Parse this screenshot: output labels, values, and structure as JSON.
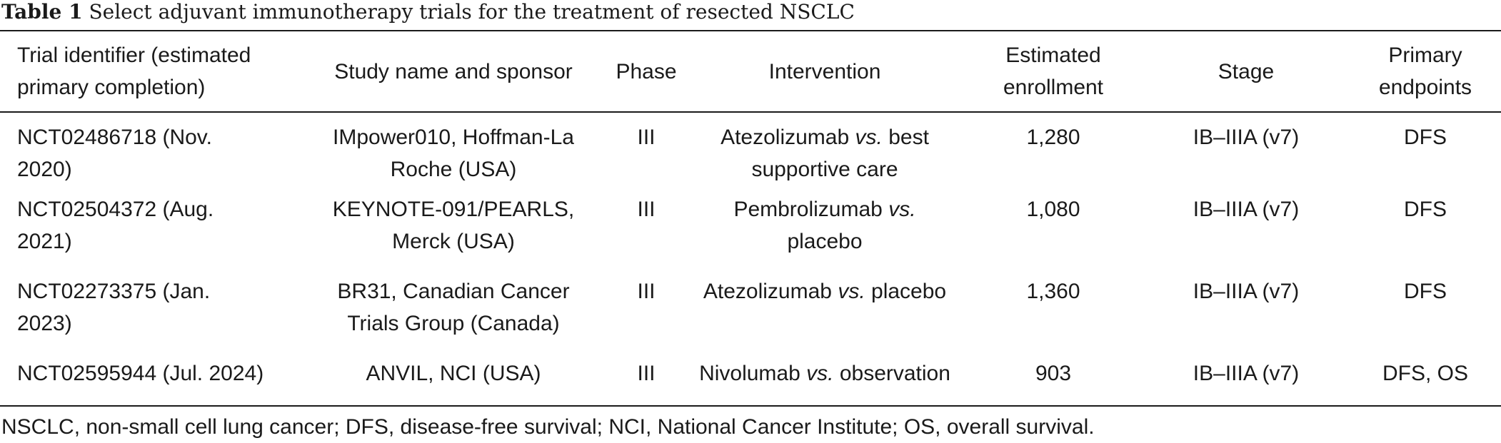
{
  "caption": {
    "label": "Table 1",
    "text": "Select adjuvant immunotherapy trials for the treatment of resected NSCLC"
  },
  "table": {
    "headers": {
      "trial_identifier_line1": "Trial identifier (estimated",
      "trial_identifier_line2": "primary completion)",
      "study": "Study name and sponsor",
      "phase": "Phase",
      "intervention": "Intervention",
      "enrollment_line1": "Estimated",
      "enrollment_line2": "enrollment",
      "stage": "Stage",
      "endpoints_line1": "Primary",
      "endpoints_line2": "endpoints"
    },
    "rows": [
      {
        "trial_line1": "NCT02486718 (Nov.",
        "trial_line2": "2020)",
        "study_line1": "IMpower010, Hoffman-La",
        "study_line2": "Roche (USA)",
        "phase": "III",
        "intervention_drug": "Atezolizumab",
        "intervention_vs": "vs.",
        "intervention_rest1": "best",
        "intervention_line2": "supportive care",
        "enrollment": "1,280",
        "stage": "IB–IIIA (v7)",
        "endpoints": "DFS"
      },
      {
        "trial_line1": "NCT02504372 (Aug.",
        "trial_line2": "2021)",
        "study_line1": "KEYNOTE-091/PEARLS,",
        "study_line2": "Merck (USA)",
        "phase": "III",
        "intervention_drug": "Pembrolizumab",
        "intervention_vs": "vs.",
        "intervention_rest1": "",
        "intervention_line2": "placebo",
        "enrollment": "1,080",
        "stage": "IB–IIIA (v7)",
        "endpoints": "DFS"
      },
      {
        "trial_line1": "NCT02273375 (Jan.",
        "trial_line2": "2023)",
        "study_line1": "BR31, Canadian Cancer",
        "study_line2": "Trials Group (Canada)",
        "phase": "III",
        "intervention_drug": "Atezolizumab",
        "intervention_vs": "vs.",
        "intervention_rest1": "placebo",
        "intervention_line2": "",
        "enrollment": "1,360",
        "stage": "IB–IIIA (v7)",
        "endpoints": "DFS"
      },
      {
        "trial_line1": "NCT02595944 (Jul. 2024)",
        "trial_line2": "",
        "study_line1": "ANVIL, NCI (USA)",
        "study_line2": "",
        "phase": "III",
        "intervention_drug": "Nivolumab",
        "intervention_vs": "vs.",
        "intervention_rest1": "observation",
        "intervention_line2": "",
        "enrollment": "903",
        "stage": "IB–IIIA (v7)",
        "endpoints": "DFS, OS"
      }
    ]
  },
  "footnote": "NSCLC, non-small cell lung cancer; DFS, disease-free survival; NCI, National Cancer Institute; OS, overall survival."
}
